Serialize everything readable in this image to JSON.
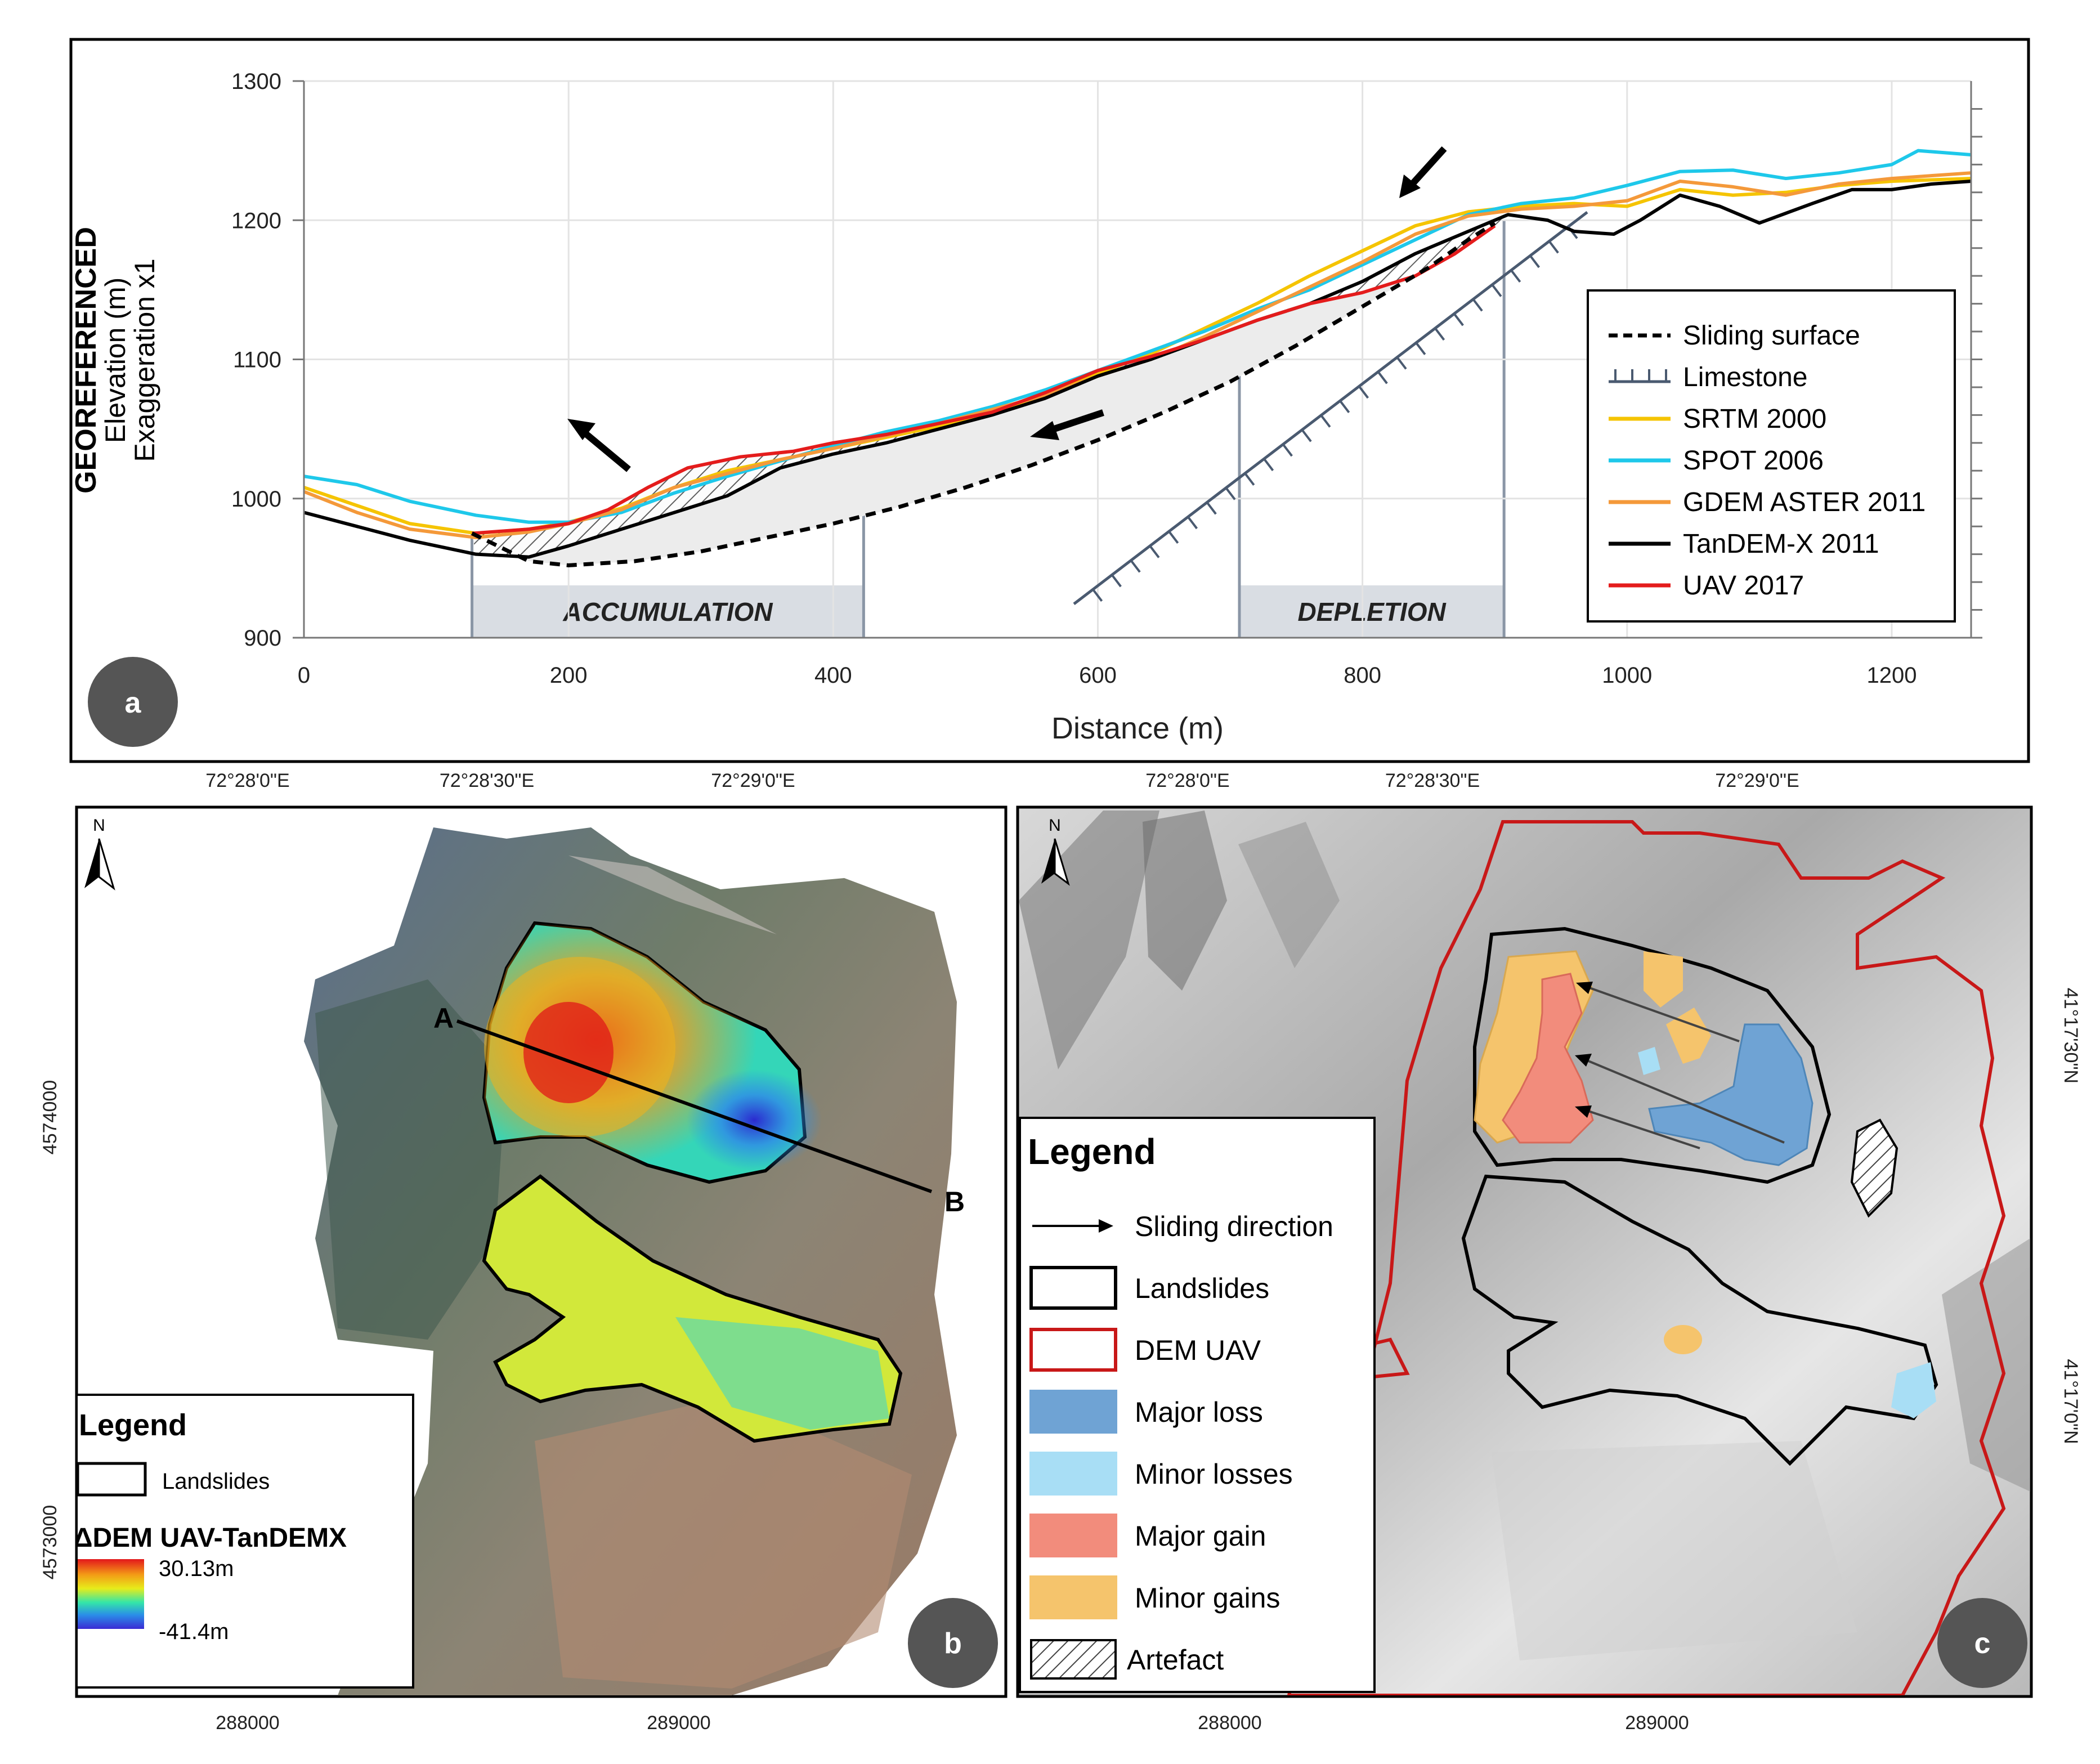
{
  "panel_a": {
    "badge": "a",
    "ylabel_bold": "GEOREFERENCED",
    "ylabel_1": "Elevation (m)",
    "ylabel_2": "Exaggeration x1",
    "xlabel": "Distance (m)",
    "zone_accumulation": "ACCUMULATION",
    "zone_depletion": "DEPLETION",
    "legend": [
      {
        "label": "Sliding surface",
        "color": "#000000",
        "style": "dashed"
      },
      {
        "label": "Limestone",
        "color": "#4a5a70",
        "style": "limestone"
      },
      {
        "label": "SRTM 2000",
        "color": "#f5c400",
        "style": "line"
      },
      {
        "label": "SPOT 2006",
        "color": "#1ec8ea",
        "style": "line"
      },
      {
        "label": "GDEM ASTER 2011",
        "color": "#f4993a",
        "style": "line"
      },
      {
        "label": "TanDEM-X 2011",
        "color": "#000000",
        "style": "line"
      },
      {
        "label": "UAV 2017",
        "color": "#e41c1c",
        "style": "line"
      }
    ]
  },
  "chart_data": {
    "type": "line",
    "title": "",
    "xlabel": "Distance (m)",
    "ylabel": "Elevation (m)",
    "xlim": [
      0,
      1260
    ],
    "ylim": [
      900,
      1300
    ],
    "xticks": [
      0,
      200,
      400,
      600,
      800,
      1000,
      1200
    ],
    "yticks": [
      900,
      1000,
      1100,
      1200,
      1300
    ],
    "zones": [
      {
        "name": "ACCUMULATION",
        "from": 127,
        "to": 423
      },
      {
        "name": "DEPLETION",
        "from": 707,
        "to": 907
      }
    ],
    "series": [
      {
        "name": "SRTM 2000",
        "color": "#f5c400",
        "x": [
          0,
          40,
          80,
          130,
          170,
          200,
          240,
          280,
          320,
          360,
          400,
          440,
          480,
          520,
          560,
          600,
          640,
          680,
          720,
          760,
          800,
          840,
          880,
          920,
          960,
          1000,
          1040,
          1080,
          1120,
          1160,
          1200,
          1260
        ],
        "y": [
          1008,
          995,
          982,
          975,
          978,
          983,
          993,
          1008,
          1020,
          1028,
          1036,
          1044,
          1052,
          1062,
          1074,
          1090,
          1104,
          1122,
          1140,
          1160,
          1178,
          1196,
          1206,
          1210,
          1212,
          1210,
          1222,
          1218,
          1220,
          1225,
          1228,
          1230
        ]
      },
      {
        "name": "SPOT 2006",
        "color": "#1ec8ea",
        "x": [
          0,
          40,
          80,
          130,
          170,
          200,
          240,
          280,
          320,
          360,
          400,
          440,
          480,
          520,
          560,
          600,
          640,
          680,
          720,
          760,
          800,
          840,
          880,
          920,
          960,
          1000,
          1040,
          1080,
          1120,
          1160,
          1200,
          1220,
          1260
        ],
        "y": [
          1016,
          1010,
          998,
          988,
          983,
          983,
          990,
          1004,
          1016,
          1027,
          1038,
          1048,
          1056,
          1066,
          1078,
          1092,
          1106,
          1120,
          1136,
          1150,
          1168,
          1186,
          1204,
          1212,
          1216,
          1225,
          1235,
          1236,
          1230,
          1234,
          1240,
          1250,
          1247
        ]
      },
      {
        "name": "GDEM ASTER 2011",
        "color": "#f4993a",
        "x": [
          0,
          40,
          80,
          130,
          170,
          200,
          240,
          280,
          320,
          360,
          400,
          440,
          480,
          520,
          560,
          600,
          640,
          680,
          720,
          760,
          800,
          840,
          880,
          920,
          960,
          1000,
          1040,
          1080,
          1120,
          1160,
          1200,
          1260
        ],
        "y": [
          1005,
          990,
          978,
          972,
          976,
          982,
          992,
          1008,
          1018,
          1028,
          1036,
          1045,
          1054,
          1064,
          1074,
          1088,
          1100,
          1116,
          1134,
          1152,
          1170,
          1190,
          1203,
          1208,
          1210,
          1214,
          1228,
          1224,
          1218,
          1226,
          1230,
          1234
        ]
      },
      {
        "name": "TanDEM-X 2011",
        "color": "#000000",
        "x": [
          0,
          40,
          80,
          130,
          170,
          200,
          240,
          280,
          320,
          360,
          400,
          440,
          480,
          520,
          560,
          600,
          640,
          680,
          720,
          760,
          800,
          840,
          880,
          910,
          940,
          960,
          990,
          1010,
          1040,
          1070,
          1100,
          1140,
          1170,
          1200,
          1230,
          1260
        ],
        "y": [
          990,
          980,
          970,
          960,
          958,
          966,
          978,
          990,
          1002,
          1022,
          1032,
          1040,
          1050,
          1060,
          1072,
          1088,
          1100,
          1114,
          1128,
          1140,
          1156,
          1176,
          1192,
          1204,
          1200,
          1192,
          1190,
          1200,
          1218,
          1210,
          1198,
          1212,
          1222,
          1222,
          1226,
          1228
        ]
      },
      {
        "name": "UAV 2017",
        "color": "#e41c1c",
        "x": [
          127,
          170,
          200,
          230,
          260,
          290,
          330,
          370,
          400,
          440,
          480,
          520,
          560,
          600,
          640,
          680,
          720,
          760,
          800,
          840,
          870,
          900
        ],
        "y": [
          975,
          978,
          982,
          992,
          1008,
          1022,
          1030,
          1034,
          1040,
          1046,
          1054,
          1062,
          1076,
          1092,
          1102,
          1114,
          1128,
          1140,
          1148,
          1160,
          1176,
          1196
        ]
      },
      {
        "name": "Sliding surface",
        "color": "#000000",
        "x": [
          127,
          170,
          200,
          250,
          300,
          350,
          400,
          450,
          500,
          550,
          600,
          650,
          700,
          750,
          800,
          850,
          880,
          900
        ],
        "y": [
          975,
          955,
          952,
          955,
          962,
          972,
          982,
          994,
          1008,
          1024,
          1042,
          1062,
          1084,
          1110,
          1138,
          1166,
          1186,
          1198
        ]
      }
    ]
  },
  "panel_b": {
    "badge": "b",
    "top_ticks": [
      "72°28'0\"E",
      "72°28'30\"E",
      "72°29'0\"E"
    ],
    "bottom_ticks": [
      "288000",
      "289000"
    ],
    "left_ticks": [
      "4574000",
      "4573000"
    ],
    "north": "N",
    "point_a": "A",
    "point_b": "B",
    "legend_title": "Legend",
    "legend_landslides": "Landslides",
    "legend_ramp_title": "ΔDEM UAV-TanDEMX",
    "ramp_max": "30.13m",
    "ramp_min": "-41.4m"
  },
  "panel_c": {
    "badge": "c",
    "top_ticks": [
      "72°28'0\"E",
      "72°28'30\"E",
      "72°29'0\"E"
    ],
    "bottom_ticks": [
      "288000",
      "289000"
    ],
    "right_ticks": [
      "41°17'30\"N",
      "41°17'0\"N"
    ],
    "north": "N",
    "legend_title": "Legend",
    "legend_items": [
      {
        "label": "Sliding direction",
        "kind": "arrow"
      },
      {
        "label": "Landslides",
        "kind": "box",
        "stroke": "#000000",
        "fill": "#ffffff"
      },
      {
        "label": "DEM UAV",
        "kind": "box",
        "stroke": "#c81818",
        "fill": "#ffffff"
      },
      {
        "label": "Major loss",
        "kind": "box",
        "stroke": "#6fa3d4",
        "fill": "#6fa3d4"
      },
      {
        "label": "Minor losses",
        "kind": "box",
        "stroke": "#a8def5",
        "fill": "#a8def5"
      },
      {
        "label": "Major gain",
        "kind": "box",
        "stroke": "#f28c7c",
        "fill": "#f28c7c"
      },
      {
        "label": "Minor gains",
        "kind": "box",
        "stroke": "#f5c46c",
        "fill": "#f5c46c"
      },
      {
        "label": "Artefact",
        "kind": "hatch"
      }
    ]
  }
}
